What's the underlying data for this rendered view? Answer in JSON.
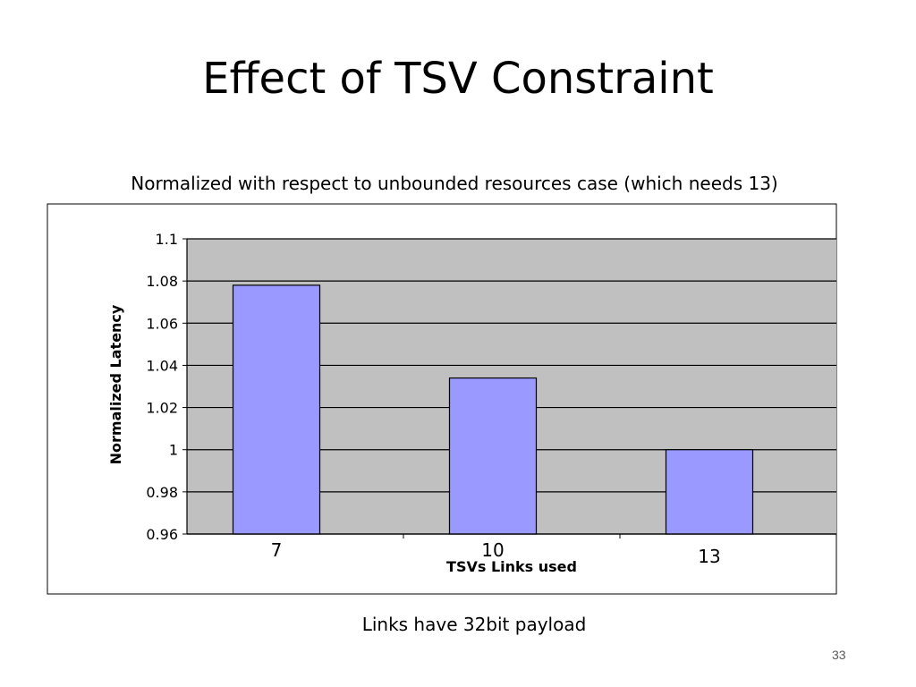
{
  "slide": {
    "title": "Effect of TSV Constraint",
    "page_number": "33"
  },
  "chart_data": {
    "type": "bar",
    "title": "Normalized with respect to unbounded resources case (which needs 13)",
    "categories": [
      "7",
      "10",
      "13"
    ],
    "values": [
      1.078,
      1.034,
      1.0
    ],
    "xlabel": "TSVs Links used",
    "ylabel": "Normalized Latency",
    "ylim": [
      0.96,
      1.1
    ],
    "yticks": [
      0.96,
      0.98,
      1,
      1.02,
      1.04,
      1.06,
      1.08,
      1.1
    ],
    "ytick_labels": [
      "0.96",
      "0.98",
      "1",
      "1.02",
      "1.04",
      "1.06",
      "1.08",
      "1.1"
    ],
    "grid": true,
    "caption": "Links have 32bit payload",
    "colors": {
      "bar": "#9999ff",
      "plot_background": "#c0c0c0",
      "bar_outline": "#000000"
    }
  }
}
